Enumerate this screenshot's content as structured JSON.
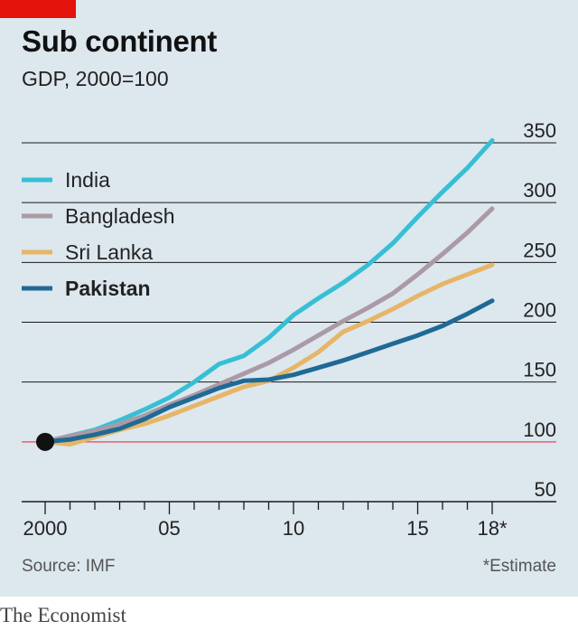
{
  "header": {
    "title": "Sub continent",
    "subtitle": "GDP, 2000=100"
  },
  "footer": {
    "source": "Source: IMF",
    "footnote": "*Estimate",
    "brand": "The Economist"
  },
  "colors": {
    "background": "#dce7ee",
    "accent_red": "#e3120b",
    "baseline": "#e0656d",
    "grid": "#1a1a1a"
  },
  "chart_data": {
    "type": "line",
    "title": "Sub continent",
    "subtitle": "GDP, 2000=100",
    "xlabel": "",
    "ylabel": "",
    "x": [
      2000,
      2001,
      2002,
      2003,
      2004,
      2005,
      2006,
      2007,
      2008,
      2009,
      2010,
      2011,
      2012,
      2013,
      2014,
      2015,
      2016,
      2017,
      2018
    ],
    "xtick_values": [
      2000,
      2005,
      2010,
      2015,
      2018
    ],
    "xtick_labels": [
      "2000",
      "05",
      "10",
      "15",
      "18*"
    ],
    "ylim": [
      50,
      350
    ],
    "yticks": [
      50,
      100,
      150,
      200,
      250,
      300,
      350
    ],
    "grid": true,
    "baseline_value": 100,
    "legend_position": "top-left",
    "start_marker": {
      "x": 2000,
      "y": 100
    },
    "series": [
      {
        "name": "India",
        "color": "#37bfd4",
        "bold": false,
        "values": [
          100,
          105,
          110,
          118,
          127,
          137,
          150,
          165,
          172,
          187,
          206,
          220,
          233,
          248,
          266,
          288,
          309,
          329,
          352
        ]
      },
      {
        "name": "Bangladesh",
        "color": "#ab9aa5",
        "bold": false,
        "values": [
          100,
          105,
          109,
          115,
          122,
          131,
          139,
          148,
          157,
          166,
          177,
          189,
          201,
          212,
          224,
          240,
          257,
          275,
          295
        ]
      },
      {
        "name": "Sri Lanka",
        "color": "#e6b566",
        "bold": false,
        "values": [
          100,
          98,
          104,
          110,
          115,
          122,
          130,
          138,
          146,
          151,
          162,
          175,
          192,
          201,
          211,
          222,
          232,
          240,
          248
        ]
      },
      {
        "name": "Pakistan",
        "color": "#1f6a95",
        "bold": true,
        "values": [
          100,
          102,
          106,
          111,
          119,
          129,
          137,
          145,
          151,
          152,
          156,
          162,
          168,
          175,
          182,
          189,
          197,
          207,
          218
        ]
      }
    ]
  }
}
